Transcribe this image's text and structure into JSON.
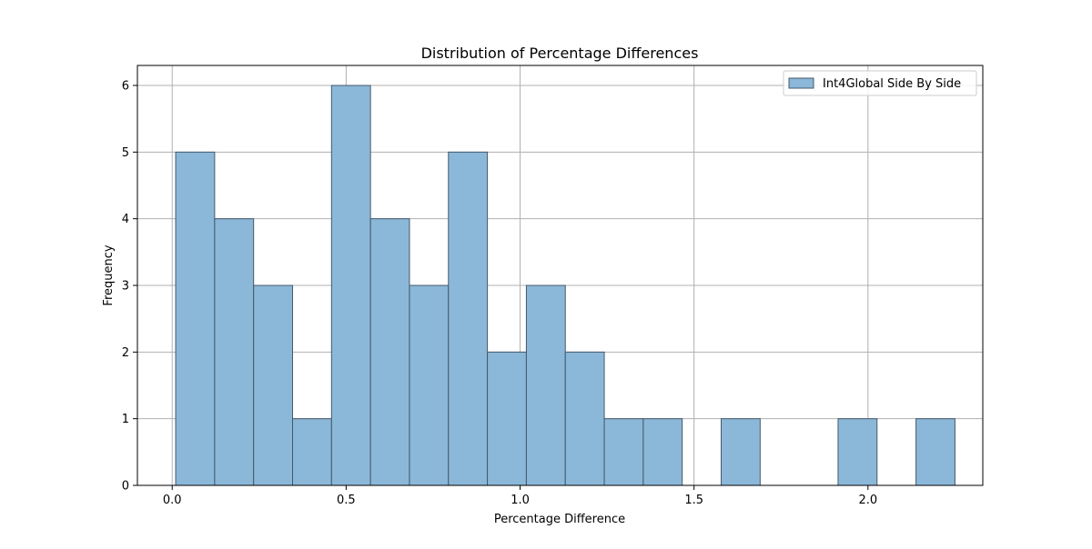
{
  "chart_data": {
    "type": "bar",
    "title": "Distribution of Percentage Differences",
    "xlabel": "Percentage Difference",
    "ylabel": "Frequency",
    "xlim": [
      -0.1,
      2.33
    ],
    "ylim": [
      0,
      6.3
    ],
    "xticks": [
      0.0,
      0.5,
      1.0,
      1.5,
      2.0
    ],
    "xtick_labels": [
      "0.0",
      "0.5",
      "1.0",
      "1.5",
      "2.0"
    ],
    "yticks": [
      0,
      1,
      2,
      3,
      4,
      5,
      6
    ],
    "ytick_labels": [
      "0",
      "1",
      "2",
      "3",
      "4",
      "5",
      "6"
    ],
    "grid": true,
    "legend_position": "top-right",
    "bin_edges": [
      0.01,
      0.122,
      0.234,
      0.346,
      0.458,
      0.57,
      0.682,
      0.794,
      0.906,
      1.018,
      1.13,
      1.242,
      1.354,
      1.466,
      1.578,
      1.69,
      1.802,
      1.914,
      2.026,
      2.138,
      2.25
    ],
    "series": [
      {
        "name": "Int4Global Side By Side",
        "color": "#8bb8d8",
        "edge_color": "#44596b",
        "values": [
          5,
          4,
          3,
          1,
          6,
          4,
          3,
          5,
          2,
          3,
          2,
          1,
          1,
          0,
          1,
          0,
          0,
          1,
          0,
          1
        ]
      }
    ]
  }
}
